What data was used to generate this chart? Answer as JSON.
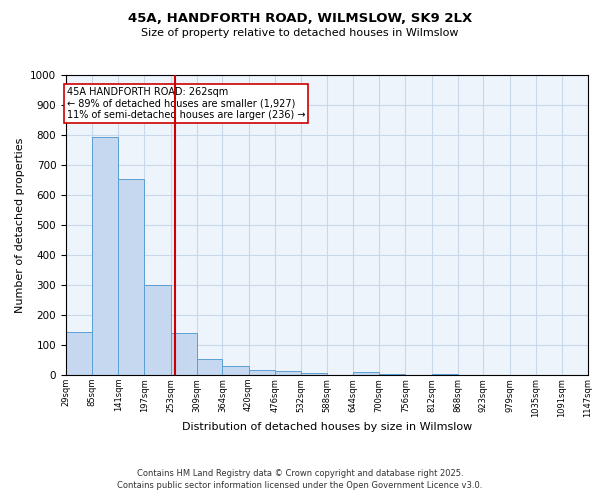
{
  "title1": "45A, HANDFORTH ROAD, WILMSLOW, SK9 2LX",
  "title2": "Size of property relative to detached houses in Wilmslow",
  "xlabel": "Distribution of detached houses by size in Wilmslow",
  "ylabel": "Number of detached properties",
  "bar_values": [
    145,
    795,
    655,
    300,
    140,
    55,
    30,
    18,
    12,
    8,
    0,
    10,
    5,
    0,
    5,
    0,
    0,
    0,
    0,
    0
  ],
  "bin_edges": [
    29,
    85,
    141,
    197,
    253,
    309,
    364,
    420,
    476,
    532,
    588,
    644,
    700,
    756,
    812,
    868,
    923,
    979,
    1035,
    1091,
    1147
  ],
  "tick_labels": [
    "29sqm",
    "85sqm",
    "141sqm",
    "197sqm",
    "253sqm",
    "309sqm",
    "364sqm",
    "420sqm",
    "476sqm",
    "532sqm",
    "588sqm",
    "644sqm",
    "700sqm",
    "756sqm",
    "812sqm",
    "868sqm",
    "923sqm",
    "979sqm",
    "1035sqm",
    "1091sqm",
    "1147sqm"
  ],
  "bar_color": "#c5d8f0",
  "bar_edge_color": "#5a9fd4",
  "grid_color": "#c8d8e8",
  "background_color": "#eef4fb",
  "red_line_x": 262,
  "red_line_color": "#cc0000",
  "annotation_text": "45A HANDFORTH ROAD: 262sqm\n← 89% of detached houses are smaller (1,927)\n11% of semi-detached houses are larger (236) →",
  "annotation_box_color": "#ffffff",
  "annotation_box_edge": "#cc0000",
  "ylim": [
    0,
    1000
  ],
  "yticks": [
    0,
    100,
    200,
    300,
    400,
    500,
    600,
    700,
    800,
    900,
    1000
  ],
  "footer1": "Contains HM Land Registry data © Crown copyright and database right 2025.",
  "footer2": "Contains public sector information licensed under the Open Government Licence v3.0."
}
